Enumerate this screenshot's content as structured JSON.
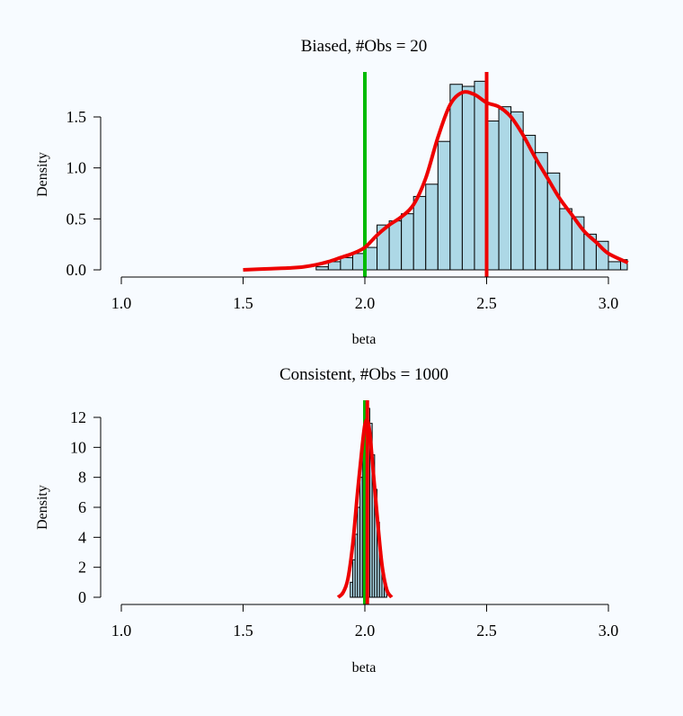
{
  "chart_data": [
    {
      "type": "histogram",
      "title": "Biased, #Obs = 20",
      "xlabel": "beta",
      "ylabel": "Density",
      "xlim": [
        1.0,
        3.0
      ],
      "ylim": [
        0,
        1.75
      ],
      "xticks": [
        "1.0",
        "1.5",
        "2.0",
        "2.5",
        "3.0"
      ],
      "yticks": [
        "0.0",
        "0.5",
        "1.0",
        "1.5"
      ],
      "bar_color": "#add8e6",
      "bin_width": 0.05,
      "bins": [
        {
          "x0": 1.8,
          "density": 0.03
        },
        {
          "x0": 1.85,
          "density": 0.08
        },
        {
          "x0": 1.9,
          "density": 0.12
        },
        {
          "x0": 1.95,
          "density": 0.16
        },
        {
          "x0": 2.0,
          "density": 0.22
        },
        {
          "x0": 2.05,
          "density": 0.44
        },
        {
          "x0": 2.1,
          "density": 0.48
        },
        {
          "x0": 2.15,
          "density": 0.55
        },
        {
          "x0": 2.2,
          "density": 0.72
        },
        {
          "x0": 2.25,
          "density": 0.84
        },
        {
          "x0": 2.3,
          "density": 1.26
        },
        {
          "x0": 2.35,
          "density": 1.82
        },
        {
          "x0": 2.4,
          "density": 1.8
        },
        {
          "x0": 2.45,
          "density": 1.85
        },
        {
          "x0": 2.5,
          "density": 1.46
        },
        {
          "x0": 2.55,
          "density": 1.6
        },
        {
          "x0": 2.6,
          "density": 1.55
        },
        {
          "x0": 2.65,
          "density": 1.32
        },
        {
          "x0": 2.7,
          "density": 1.15
        },
        {
          "x0": 2.75,
          "density": 0.95
        },
        {
          "x0": 2.8,
          "density": 0.6
        },
        {
          "x0": 2.85,
          "density": 0.52
        },
        {
          "x0": 2.9,
          "density": 0.35
        },
        {
          "x0": 2.95,
          "density": 0.28
        },
        {
          "x0": 3.0,
          "density": 0.08
        },
        {
          "x0": 3.05,
          "density": 0.1
        }
      ],
      "density_curve": {
        "color": "#ee0000",
        "x": [
          1.5,
          1.6,
          1.7,
          1.75,
          1.8,
          1.85,
          1.9,
          1.95,
          2.0,
          2.05,
          2.1,
          2.15,
          2.2,
          2.25,
          2.3,
          2.35,
          2.4,
          2.45,
          2.5,
          2.55,
          2.6,
          2.65,
          2.7,
          2.75,
          2.8,
          2.85,
          2.9,
          2.95,
          3.0,
          3.08
        ],
        "y": [
          0.0,
          0.01,
          0.02,
          0.03,
          0.05,
          0.08,
          0.12,
          0.16,
          0.22,
          0.34,
          0.44,
          0.52,
          0.64,
          0.9,
          1.3,
          1.62,
          1.74,
          1.72,
          1.64,
          1.6,
          1.5,
          1.32,
          1.1,
          0.9,
          0.7,
          0.54,
          0.38,
          0.27,
          0.16,
          0.07
        ]
      },
      "vlines": [
        {
          "x": 2.0,
          "color": "#00bb00"
        },
        {
          "x": 2.5,
          "color": "#ee0000"
        }
      ]
    },
    {
      "type": "histogram",
      "title": "Consistent, #Obs = 1000",
      "xlabel": "beta",
      "ylabel": "Density",
      "xlim": [
        1.0,
        3.0
      ],
      "ylim": [
        0,
        12
      ],
      "xticks": [
        "1.0",
        "1.5",
        "2.0",
        "2.5",
        "3.0"
      ],
      "yticks": [
        "0",
        "2",
        "4",
        "6",
        "8",
        "10",
        "12"
      ],
      "bar_color": "#add8e6",
      "bin_width": 0.01,
      "bins": [
        {
          "x0": 1.94,
          "density": 1.0
        },
        {
          "x0": 1.95,
          "density": 2.5
        },
        {
          "x0": 1.96,
          "density": 4.2
        },
        {
          "x0": 1.97,
          "density": 6.0
        },
        {
          "x0": 1.98,
          "density": 8.0
        },
        {
          "x0": 1.99,
          "density": 10.2
        },
        {
          "x0": 2.0,
          "density": 11.8
        },
        {
          "x0": 2.01,
          "density": 12.6
        },
        {
          "x0": 2.02,
          "density": 11.6
        },
        {
          "x0": 2.03,
          "density": 9.5
        },
        {
          "x0": 2.04,
          "density": 7.2
        },
        {
          "x0": 2.05,
          "density": 5.0
        },
        {
          "x0": 2.06,
          "density": 3.0
        },
        {
          "x0": 2.07,
          "density": 1.6
        },
        {
          "x0": 2.08,
          "density": 0.6
        }
      ],
      "density_curve": {
        "color": "#ee0000",
        "x": [
          1.89,
          1.91,
          1.93,
          1.95,
          1.97,
          1.99,
          2.0,
          2.01,
          2.02,
          2.03,
          2.05,
          2.07,
          2.09,
          2.11
        ],
        "y": [
          0.0,
          0.3,
          1.2,
          3.5,
          7.0,
          10.2,
          11.5,
          11.8,
          11.0,
          9.2,
          5.5,
          2.2,
          0.5,
          0.0
        ]
      },
      "vlines": [
        {
          "x": 2.0,
          "color": "#00bb00"
        },
        {
          "x": 2.01,
          "color": "#ee0000"
        }
      ]
    }
  ]
}
